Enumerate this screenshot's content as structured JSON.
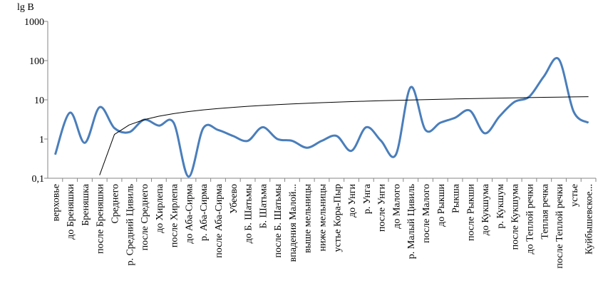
{
  "chart_data": {
    "type": "line",
    "y_label": "lg B",
    "log_y": true,
    "categories": [
      "верховье",
      "до Бреняшки",
      "Бреняшка",
      "после Бреняшки",
      "Среднего",
      "р. Средний Цивиль",
      "после Среднего",
      "до Хирлепа",
      "после Хирлепа",
      "до Аба-Сирма",
      "р. Аба-Сирма",
      "после Аба-Сирма",
      "Убеево",
      "до Б. Шатьмы",
      "Б. Шатьма",
      "после Б. Шатьмы",
      "впадения Малой...",
      "выше мельницы",
      "ниже мельницы",
      "устье Кора-Пыр",
      "до Унги",
      "р. Унга",
      "после Унги",
      "до Малого",
      "р. Малый Цивиль",
      "после Малого",
      "до Рыкши",
      "Рыкша",
      "после Рыкши",
      "до Кукшума",
      "р. Кукшум",
      "после Кукшума",
      "до Теплой речки",
      "Теплая речка",
      "после Теплой речки",
      "устье",
      "Куйбышевское..."
    ],
    "series": [
      {
        "color": "#4a7ebb",
        "width": 3,
        "smooth": true,
        "values": [
          0.4,
          4.7,
          0.8,
          6.5,
          1.9,
          1.5,
          3.1,
          2.2,
          2.6,
          0.11,
          1.9,
          1.7,
          1.2,
          0.9,
          2.0,
          1.0,
          0.9,
          0.6,
          0.9,
          1.2,
          0.5,
          2.0,
          0.9,
          0.4,
          21,
          1.7,
          2.6,
          3.5,
          5.3,
          1.4,
          3.8,
          8.8,
          12,
          40,
          108,
          5,
          2.6
        ]
      },
      {
        "color": "#000000",
        "width": 1,
        "smooth": false,
        "values": [
          null,
          null,
          null,
          0.12,
          1.31,
          2.29,
          3.11,
          3.82,
          4.45,
          5.02,
          5.53,
          6.0,
          6.42,
          6.82,
          7.19,
          7.53,
          7.86,
          8.16,
          8.45,
          8.73,
          8.99,
          9.24,
          9.47,
          9.7,
          9.92,
          10.13,
          10.33,
          10.53,
          10.71,
          10.9,
          11.07,
          11.24,
          11.41,
          11.56,
          11.72,
          11.87,
          12.02
        ]
      }
    ],
    "ylim": [
      0.1,
      1000
    ],
    "yticks": [
      {
        "value": 0.1,
        "label": "0,1"
      },
      1,
      10,
      100,
      1000
    ]
  }
}
